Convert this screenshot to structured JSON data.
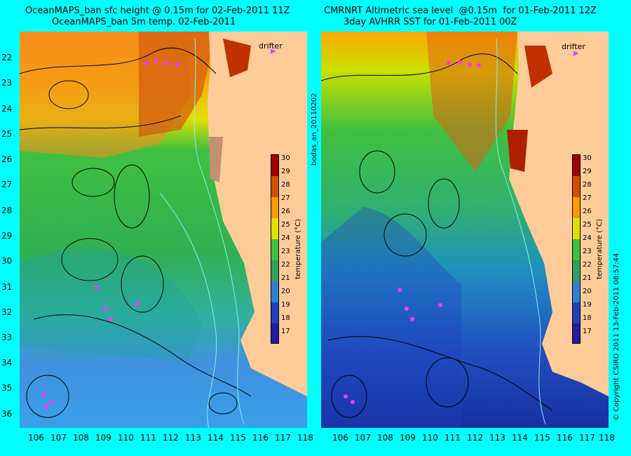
{
  "left": {
    "title1": "OceanMAPS_ban sfc height @ 0.15m for 02-Feb-2011 11Z",
    "title2": "OceanMAPS_ban 5m temp. 02-Feb-2011",
    "drifter_label": "drifter",
    "colorbar": {
      "ticks": [
        "30",
        "29",
        "28",
        "27",
        "26",
        "25",
        "24",
        "23",
        "22",
        "21",
        "20",
        "19",
        "18",
        "17"
      ],
      "label": "temperature (°C)"
    }
  },
  "right": {
    "title1": "CMRNRT Altimetric sea level  @0.15m  for 01-Feb-2011 12Z",
    "title2": "3day AVHRR SST for 01-Feb-2011 00Z",
    "drifter_label": "drifter",
    "colorbar": {
      "ticks": [
        "30",
        "29",
        "28",
        "27",
        "26",
        "25",
        "24",
        "23",
        "22",
        "21",
        "20",
        "19",
        "18",
        "17"
      ],
      "label": "temperature (°C)"
    }
  },
  "lat_labels": [
    "22",
    "23",
    "24",
    "25",
    "26",
    "27",
    "28",
    "29",
    "30",
    "31",
    "32",
    "33",
    "34",
    "35",
    "36"
  ],
  "lon_labels": [
    "106",
    "107",
    "108",
    "109",
    "110",
    "111",
    "112",
    "113",
    "114",
    "115",
    "116",
    "117",
    "118"
  ],
  "side_left": "bodas_an_20110202",
  "side_right": "© Copyright CSIRO 2011  13-Feb-2011 08:57:44",
  "colors": {
    "background": "#00ffff",
    "land": "#ffcc99"
  }
}
